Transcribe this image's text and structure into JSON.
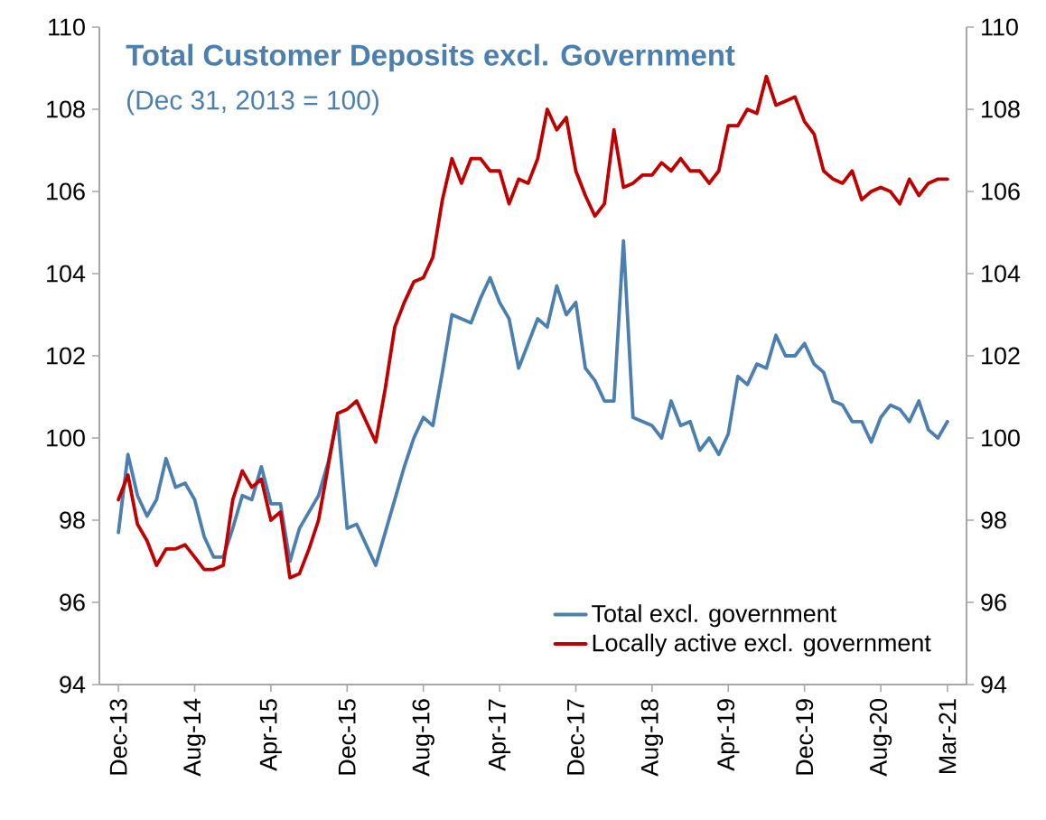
{
  "chart_data": {
    "type": "line",
    "title": "Total Customer Deposits excl. Government",
    "subtitle": "(Dec 31, 2013 = 100)",
    "x": [
      "2013-12",
      "2014-01",
      "2014-02",
      "2014-03",
      "2014-04",
      "2014-05",
      "2014-06",
      "2014-07",
      "2014-08",
      "2014-09",
      "2014-10",
      "2014-11",
      "2014-12",
      "2015-01",
      "2015-02",
      "2015-03",
      "2015-04",
      "2015-05",
      "2015-06",
      "2015-07",
      "2015-08",
      "2015-09",
      "2015-10",
      "2015-11",
      "2015-12",
      "2016-01",
      "2016-02",
      "2016-03",
      "2016-04",
      "2016-05",
      "2016-06",
      "2016-07",
      "2016-08",
      "2016-09",
      "2016-10",
      "2016-11",
      "2016-12",
      "2017-01",
      "2017-02",
      "2017-03",
      "2017-04",
      "2017-05",
      "2017-06",
      "2017-07",
      "2017-08",
      "2017-09",
      "2017-10",
      "2017-11",
      "2017-12",
      "2018-01",
      "2018-02",
      "2018-03",
      "2018-04",
      "2018-05",
      "2018-06",
      "2018-07",
      "2018-08",
      "2018-09",
      "2018-10",
      "2018-11",
      "2018-12",
      "2019-01",
      "2019-02",
      "2019-03",
      "2019-04",
      "2019-05",
      "2019-06",
      "2019-07",
      "2019-08",
      "2019-09",
      "2019-10",
      "2019-11",
      "2019-12",
      "2020-01",
      "2020-02",
      "2020-03",
      "2020-04",
      "2020-05",
      "2020-06",
      "2020-07",
      "2020-08",
      "2020-09",
      "2020-10",
      "2020-11",
      "2020-12",
      "2021-01",
      "2021-02",
      "2021-03"
    ],
    "series": [
      {
        "name": "Total excl. government",
        "color": "#4a7fb0",
        "values": [
          97.7,
          99.6,
          98.6,
          98.1,
          98.5,
          99.5,
          98.8,
          98.9,
          98.5,
          97.6,
          97.1,
          97.1,
          97.8,
          98.6,
          98.5,
          99.3,
          98.4,
          98.4,
          97.0,
          97.8,
          98.2,
          98.6,
          99.4,
          100.5,
          97.8,
          97.9,
          97.4,
          96.9,
          97.7,
          98.5,
          99.3,
          100.0,
          100.5,
          100.3,
          101.6,
          103.0,
          102.9,
          102.8,
          103.4,
          103.9,
          103.3,
          102.9,
          101.7,
          102.3,
          102.9,
          102.7,
          103.7,
          103.0,
          103.3,
          101.7,
          101.4,
          100.9,
          100.9,
          104.8,
          100.5,
          100.4,
          100.3,
          100.0,
          100.9,
          100.3,
          100.4,
          99.7,
          100.0,
          99.6,
          100.1,
          101.5,
          101.3,
          101.8,
          101.7,
          102.5,
          102.0,
          102.0,
          102.3,
          101.8,
          101.6,
          100.9,
          100.8,
          100.4,
          100.4,
          99.9,
          100.5,
          100.8,
          100.7,
          100.4,
          100.9,
          100.2,
          100.0,
          100.4
        ]
      },
      {
        "name": "Locally active excl. government",
        "color": "#c00000",
        "values": [
          98.5,
          99.1,
          97.9,
          97.5,
          96.9,
          97.3,
          97.3,
          97.4,
          97.1,
          96.8,
          96.8,
          96.9,
          98.5,
          99.2,
          98.8,
          99.0,
          98.0,
          98.2,
          96.6,
          96.7,
          97.3,
          98.0,
          99.3,
          100.6,
          100.7,
          100.9,
          100.4,
          99.9,
          101.2,
          102.7,
          103.3,
          103.8,
          103.9,
          104.4,
          105.8,
          106.8,
          106.2,
          106.8,
          106.8,
          106.5,
          106.5,
          105.7,
          106.3,
          106.2,
          106.8,
          108.0,
          107.5,
          107.8,
          106.5,
          105.9,
          105.4,
          105.7,
          107.5,
          106.1,
          106.2,
          106.4,
          106.4,
          106.7,
          106.5,
          106.8,
          106.5,
          106.5,
          106.2,
          106.5,
          107.6,
          107.6,
          108.0,
          107.9,
          108.8,
          108.1,
          108.2,
          108.3,
          107.7,
          107.4,
          106.5,
          106.3,
          106.2,
          106.5,
          105.8,
          106.0,
          106.1,
          106.0,
          105.7,
          106.3,
          105.9,
          106.2,
          106.3,
          106.3
        ]
      }
    ],
    "xlim": [
      "2013-10",
      "2021-05"
    ],
    "xticks": [
      {
        "value": "2013-12",
        "label": "Dec-13"
      },
      {
        "value": "2014-08",
        "label": "Aug-14"
      },
      {
        "value": "2015-04",
        "label": "Apr-15"
      },
      {
        "value": "2015-12",
        "label": "Dec-15"
      },
      {
        "value": "2016-08",
        "label": "Aug-16"
      },
      {
        "value": "2017-04",
        "label": "Apr-17"
      },
      {
        "value": "2017-12",
        "label": "Dec-17"
      },
      {
        "value": "2018-08",
        "label": "Aug-18"
      },
      {
        "value": "2019-04",
        "label": "Apr-19"
      },
      {
        "value": "2019-12",
        "label": "Dec-19"
      },
      {
        "value": "2020-08",
        "label": "Aug-20"
      },
      {
        "value": "2021-03",
        "label": "Mar-21"
      }
    ],
    "ylim": [
      94,
      110
    ],
    "yticks": [
      94,
      96,
      98,
      100,
      102,
      104,
      106,
      108,
      110
    ],
    "y2lim": [
      94,
      110
    ],
    "y2ticks": [
      94,
      96,
      98,
      100,
      102,
      104,
      106,
      108,
      110
    ],
    "legend": "bottom right",
    "line_style": "solid"
  }
}
